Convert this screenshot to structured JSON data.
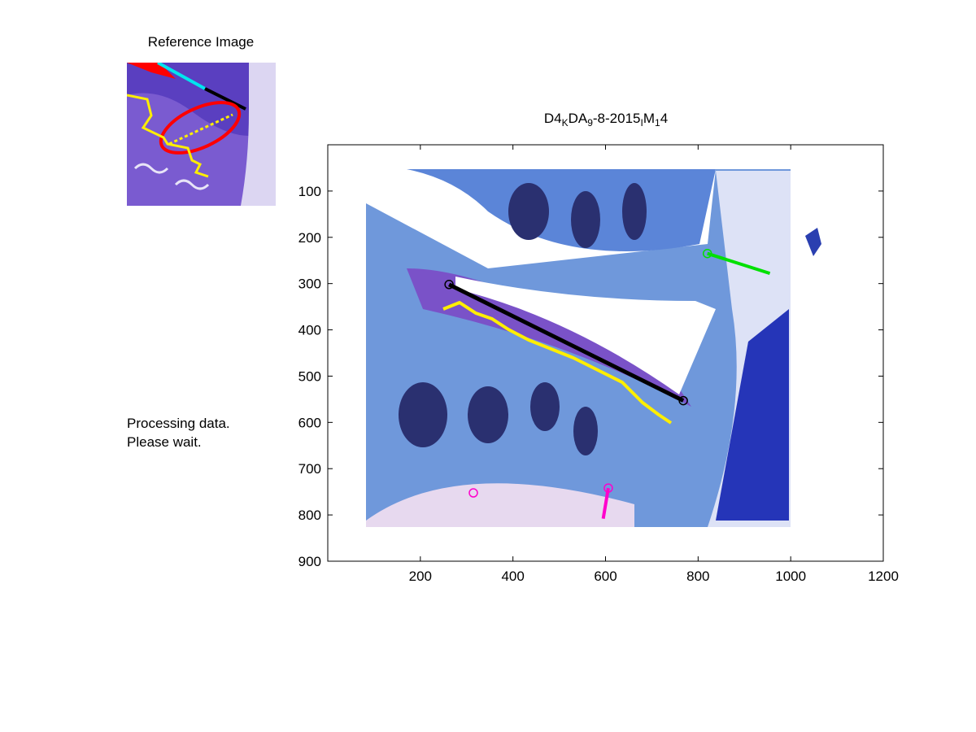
{
  "reference": {
    "title": "Reference Image"
  },
  "status": {
    "line1": "Processing data.",
    "line2": "Please wait."
  },
  "plot": {
    "title_parts": [
      "D4",
      "K",
      "DA",
      "9",
      "-8-2015",
      "I",
      "M",
      "1",
      "4"
    ],
    "x_ticks": [
      "200",
      "400",
      "600",
      "800",
      "1000",
      "1200"
    ],
    "y_ticks": [
      "100",
      "200",
      "300",
      "400",
      "500",
      "600",
      "700",
      "800",
      "900"
    ],
    "x_lim": [
      0,
      1200
    ],
    "y_lim": [
      0,
      900
    ],
    "y_reversed": true,
    "annotations": {
      "black_line": {
        "color": "#000000",
        "p1": [
          262,
          302
        ],
        "p2": [
          768,
          553
        ]
      },
      "green_line": {
        "color": "#00e000",
        "p1": [
          820,
          235
        ],
        "p2": [
          955,
          278
        ]
      },
      "magenta_line": {
        "color": "#ff00cc",
        "p1": [
          606,
          742
        ],
        "p2": [
          595,
          808
        ]
      },
      "yellow_trace_color": "#ffee00"
    }
  },
  "colors": {
    "tissue_blue": "#5b8fd6",
    "tissue_deep": "#2a3fb0",
    "cartilage": "#7a52c8"
  }
}
